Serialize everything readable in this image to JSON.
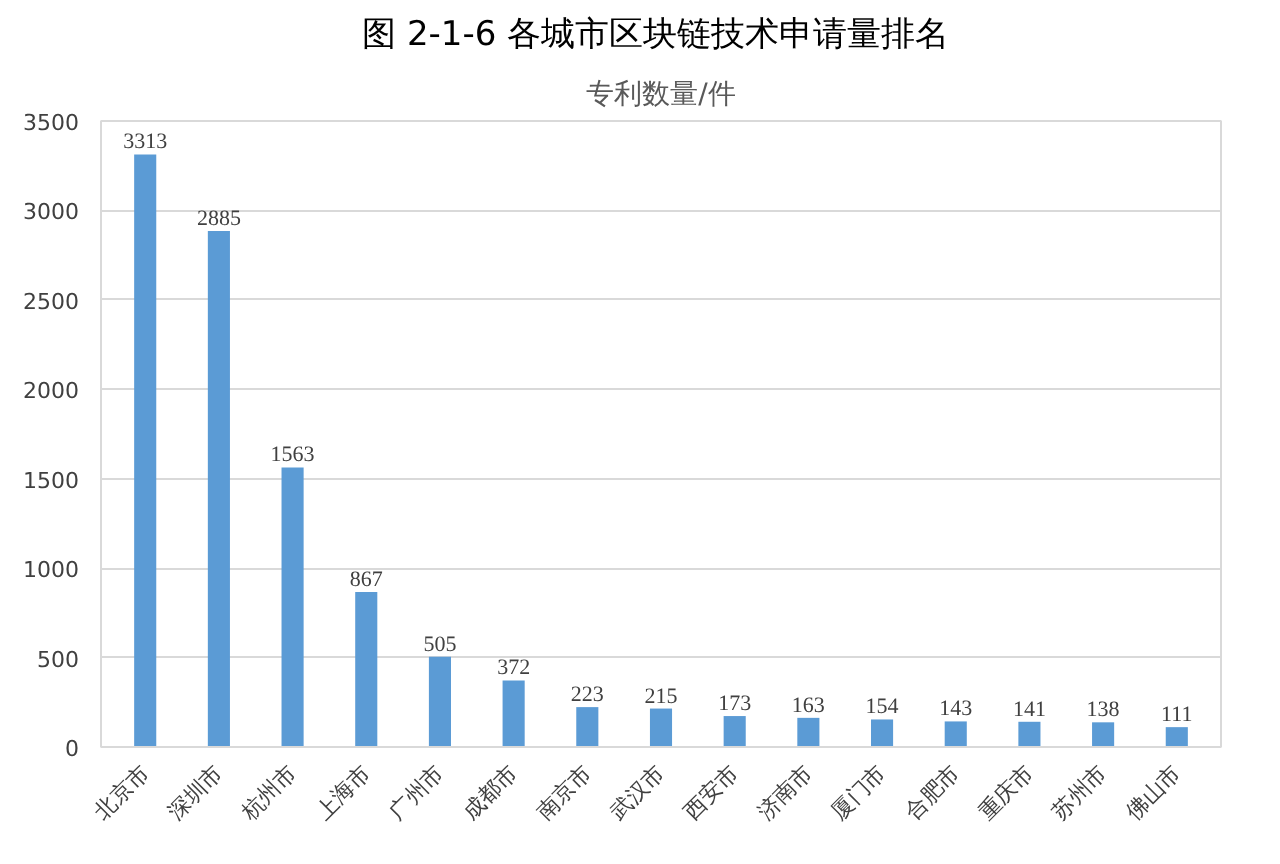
{
  "chart_data": {
    "type": "bar",
    "title": "图 2-1-6  各城市区块链技术申请量排名",
    "subtitle": "专利数量/件",
    "categories": [
      "北京市",
      "深圳市",
      "杭州市",
      "上海市",
      "广州市",
      "成都市",
      "南京市",
      "武汉市",
      "西安市",
      "济南市",
      "厦门市",
      "合肥市",
      "重庆市",
      "苏州市",
      "佛山市"
    ],
    "values": [
      3313,
      2885,
      1563,
      867,
      505,
      372,
      223,
      215,
      173,
      163,
      154,
      143,
      141,
      138,
      111
    ],
    "color": "#5b9bd5",
    "ylim": [
      0,
      3500
    ],
    "yticks": [
      0,
      500,
      1000,
      1500,
      2000,
      2500,
      3000,
      3500
    ],
    "grid": "y",
    "data_labels": true
  }
}
